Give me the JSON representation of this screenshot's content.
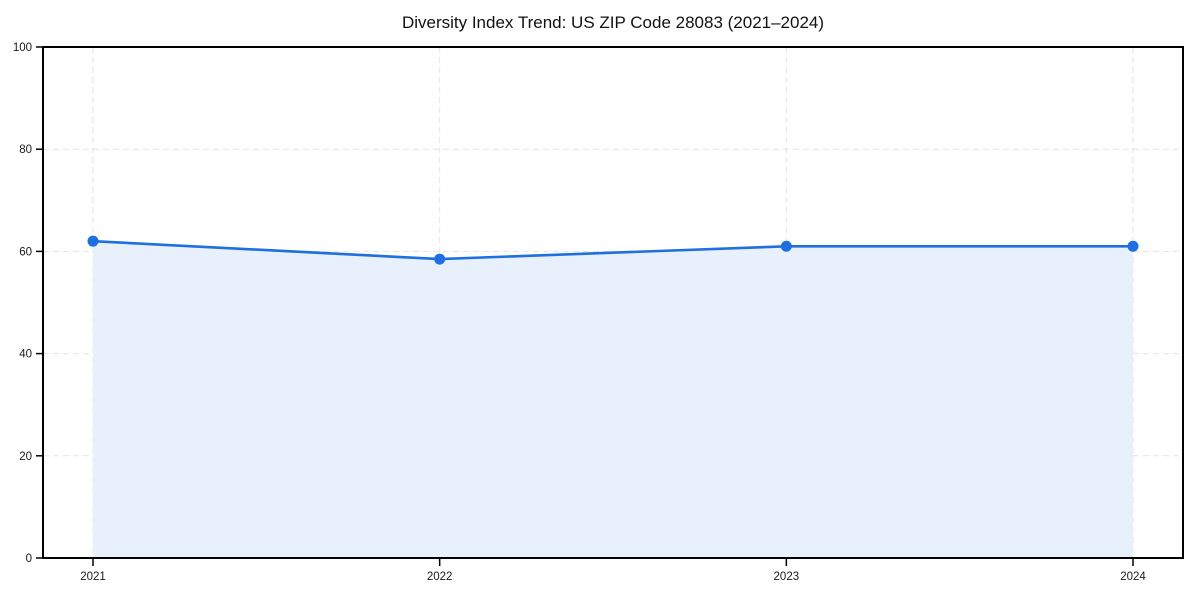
{
  "chart_data": {
    "type": "line",
    "title": "Diversity Index Trend: US ZIP Code 28083 (2021–2024)",
    "categories": [
      "2021",
      "2022",
      "2023",
      "2024"
    ],
    "series": [
      {
        "name": "Diversity Index",
        "values": [
          62,
          58.5,
          61,
          61
        ]
      }
    ],
    "xlabel": "",
    "ylabel": "",
    "ylim": [
      0,
      100
    ],
    "yticks": [
      0,
      20,
      40,
      60,
      80,
      100
    ],
    "grid": "dashed-both-axes",
    "legend_position": "none",
    "area_fill": true,
    "markers": "circle",
    "colors": {
      "line": "#1e6fe0",
      "marker": "#1e6fe0",
      "area": "#e8f0fc",
      "grid": "#e3e3e3",
      "axis": "#000000",
      "tick_text": "#1a1a1a",
      "title_text": "#111111",
      "background": "#ffffff"
    }
  }
}
